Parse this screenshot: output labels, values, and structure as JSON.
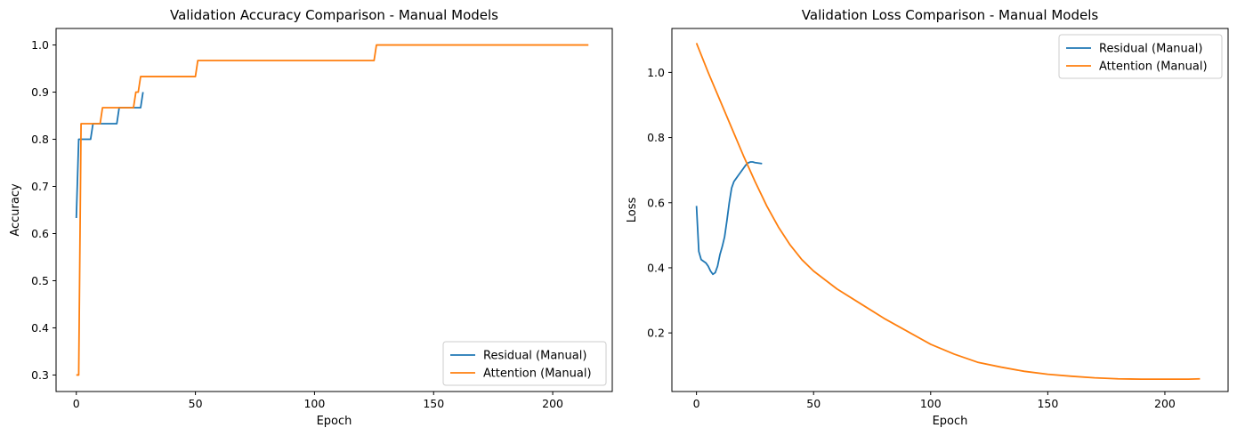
{
  "chart_data": [
    {
      "type": "line",
      "title": "Validation Accuracy Comparison - Manual Models",
      "xlabel": "Epoch",
      "ylabel": "Accuracy",
      "xlim": [
        -8.5,
        225
      ],
      "ylim": [
        0.265,
        1.035
      ],
      "xticks": [
        0,
        50,
        100,
        150,
        200
      ],
      "yticks": [
        0.3,
        0.4,
        0.5,
        0.6,
        0.7,
        0.8,
        0.9,
        1.0
      ],
      "ytick_labels": [
        "0.3",
        "0.4",
        "0.5",
        "0.6",
        "0.7",
        "0.8",
        "0.9",
        "1.0"
      ],
      "grid": false,
      "legend": "lower-right",
      "series": [
        {
          "name": "Residual (Manual)",
          "color": "#1f77b4",
          "x": [
            0,
            1,
            2,
            3,
            4,
            5,
            6,
            7,
            8,
            9,
            10,
            11,
            12,
            13,
            14,
            15,
            16,
            17,
            18,
            19,
            20,
            21,
            22,
            23,
            24,
            25,
            26,
            27,
            28
          ],
          "y": [
            0.633,
            0.8,
            0.8,
            0.8,
            0.8,
            0.8,
            0.8,
            0.833,
            0.833,
            0.833,
            0.833,
            0.833,
            0.833,
            0.833,
            0.833,
            0.833,
            0.833,
            0.833,
            0.867,
            0.867,
            0.867,
            0.867,
            0.867,
            0.867,
            0.867,
            0.867,
            0.867,
            0.867,
            0.9
          ]
        },
        {
          "name": "Attention (Manual)",
          "color": "#ff7f0e",
          "x": [
            0,
            1,
            2,
            3,
            4,
            10,
            11,
            12,
            24,
            25,
            26,
            27,
            50,
            51,
            125,
            126,
            215
          ],
          "y": [
            0.3,
            0.3,
            0.833,
            0.833,
            0.833,
            0.833,
            0.867,
            0.867,
            0.867,
            0.9,
            0.9,
            0.933,
            0.933,
            0.967,
            0.967,
            1.0,
            1.0
          ]
        }
      ]
    },
    {
      "type": "line",
      "title": "Validation Loss Comparison - Manual Models",
      "xlabel": "Epoch",
      "ylabel": "Loss",
      "xlim": [
        -10.5,
        227
      ],
      "ylim": [
        0.02,
        1.135
      ],
      "xticks": [
        0,
        50,
        100,
        150,
        200
      ],
      "yticks": [
        0.2,
        0.4,
        0.6,
        0.8,
        1.0
      ],
      "ytick_labels": [
        "0.2",
        "0.4",
        "0.6",
        "0.8",
        "1.0"
      ],
      "grid": false,
      "legend": "upper-right",
      "series": [
        {
          "name": "Residual (Manual)",
          "color": "#1f77b4",
          "x": [
            0,
            1,
            2,
            3,
            4,
            5,
            6,
            7,
            8,
            9,
            10,
            11,
            12,
            13,
            14,
            15,
            16,
            17,
            18,
            19,
            20,
            21,
            22,
            23,
            24,
            25,
            26,
            27,
            28
          ],
          "y": [
            0.59,
            0.45,
            0.425,
            0.42,
            0.415,
            0.405,
            0.39,
            0.38,
            0.385,
            0.405,
            0.44,
            0.465,
            0.495,
            0.545,
            0.6,
            0.645,
            0.665,
            0.675,
            0.685,
            0.695,
            0.705,
            0.715,
            0.722,
            0.725,
            0.725,
            0.723,
            0.722,
            0.721,
            0.72
          ]
        },
        {
          "name": "Attention (Manual)",
          "color": "#ff7f0e",
          "x": [
            0,
            5,
            10,
            15,
            20,
            25,
            30,
            35,
            40,
            45,
            50,
            60,
            70,
            80,
            90,
            100,
            110,
            120,
            130,
            140,
            150,
            160,
            170,
            180,
            190,
            200,
            210,
            215
          ],
          "y": [
            1.09,
            1.0,
            0.915,
            0.83,
            0.745,
            0.665,
            0.59,
            0.525,
            0.47,
            0.425,
            0.39,
            0.335,
            0.29,
            0.245,
            0.205,
            0.165,
            0.135,
            0.11,
            0.095,
            0.082,
            0.073,
            0.067,
            0.062,
            0.059,
            0.058,
            0.058,
            0.058,
            0.059
          ]
        }
      ]
    }
  ]
}
